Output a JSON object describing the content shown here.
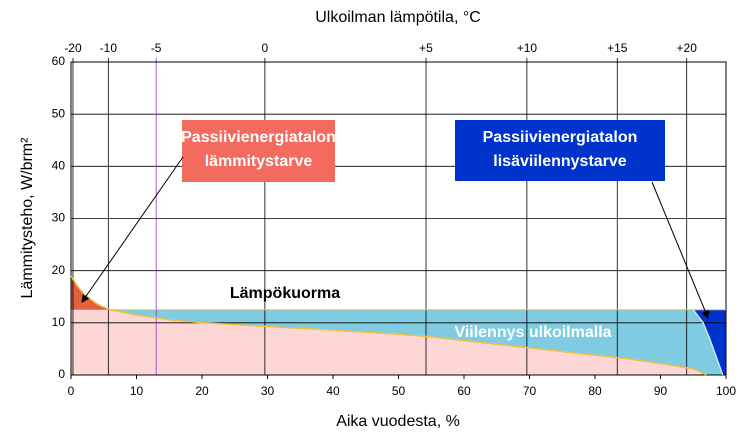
{
  "chart_data": {
    "type": "area",
    "x2label": "Ulkoilman lämpötila, °C",
    "xlabel": "Aika vuodesta, %",
    "ylabel": "Lämmitysteho, W/brm²",
    "xlim": [
      0,
      100
    ],
    "xticks": [
      0,
      10,
      20,
      30,
      40,
      50,
      60,
      70,
      80,
      90,
      100
    ],
    "ylim": [
      0,
      60
    ],
    "yticks": [
      0,
      10,
      20,
      30,
      40,
      50,
      60
    ],
    "grid": true,
    "x2ticks": [
      {
        "value": 0.3,
        "label": "-20"
      },
      {
        "value": 5.7,
        "label": "-10"
      },
      {
        "value": 13,
        "label": "-5"
      },
      {
        "value": 29.6,
        "label": "0"
      },
      {
        "value": 54.2,
        "label": "+5"
      },
      {
        "value": 69.6,
        "label": "+10"
      },
      {
        "value": 83.4,
        "label": "+15"
      },
      {
        "value": 94,
        "label": "+20"
      }
    ],
    "x2_highlight": {
      "index": 2,
      "color": "#9933cc"
    },
    "demand": {
      "color": "#f0c040",
      "fill": "#fdd6d6",
      "excess_fill": "#e2603c",
      "x": [
        0,
        1,
        2,
        3,
        4,
        5,
        6,
        8,
        10,
        15,
        20,
        30,
        40,
        50,
        55,
        60,
        70,
        80,
        85,
        90,
        93,
        95,
        97
      ],
      "values": [
        19,
        17,
        15.5,
        14.5,
        13.6,
        13,
        12.5,
        12,
        11.5,
        10.6,
        10,
        9.3,
        8.6,
        7.8,
        7.3,
        6.6,
        5.2,
        3.8,
        3.1,
        2.2,
        1.6,
        1.2,
        0
      ]
    },
    "load": {
      "label": "Lämpökuorma",
      "value": 12.5,
      "fill": "#7ecbe2"
    },
    "cooling": {
      "color": "#c8e6f5",
      "fill": "#0033cc",
      "x": [
        95,
        96.5,
        97.5,
        98.5,
        99.5
      ],
      "values": [
        12.5,
        10,
        7,
        3.5,
        0
      ]
    },
    "annotations": [
      {
        "text": [
          "Passiivienergiatalon",
          "lämmitystarve"
        ],
        "color": "#f36a5f"
      },
      {
        "text": [
          "Passiivienergiatalon",
          "lisäviilennystarve"
        ],
        "color": "#0033cc"
      },
      {
        "text": [
          "Viilennys ulkoilmalla"
        ],
        "color": "#ffffff"
      }
    ]
  }
}
